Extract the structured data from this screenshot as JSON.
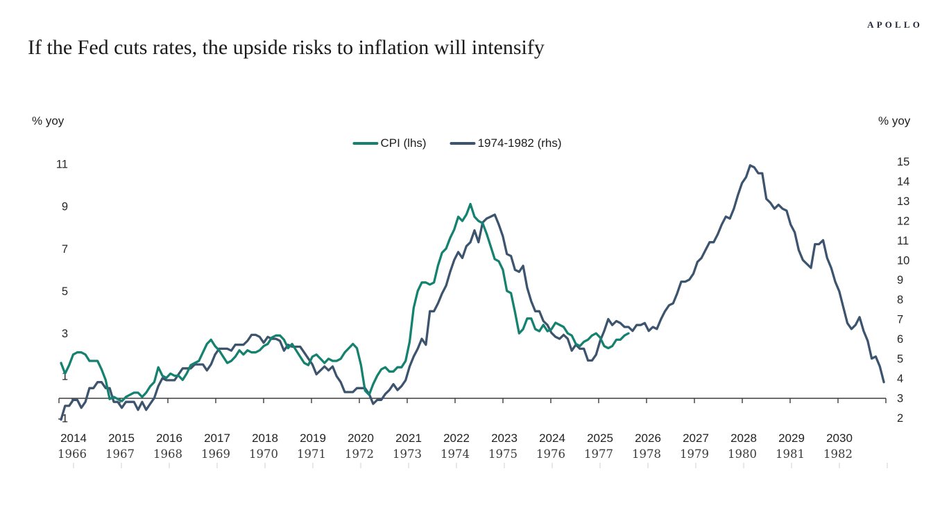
{
  "header": {
    "logo": "APOLLO",
    "title": "If the Fed cuts rates, the upside risks to inflation will intensify"
  },
  "legend": {
    "items": [
      {
        "label": "CPI (lhs)",
        "color": "#15816f"
      },
      {
        "label": "1974-1982 (rhs)",
        "color": "#3d546e"
      }
    ]
  },
  "chart_data": {
    "type": "line",
    "title": "If the Fed cuts rates, the upside risks to inflation will intensify",
    "grid": false,
    "legend_position": "top-center",
    "left_axis": {
      "unit": "% yoy",
      "ticks": [
        11,
        9,
        7,
        5,
        3,
        1,
        -1
      ],
      "range": [
        -1,
        11
      ]
    },
    "right_axis": {
      "unit": "% yoy",
      "ticks": [
        15,
        14,
        13,
        12,
        11,
        10,
        9,
        8,
        7,
        6,
        5,
        4,
        3,
        2
      ],
      "range": [
        2,
        15
      ]
    },
    "x_axis": {
      "top_years": [
        2014,
        2015,
        2016,
        2017,
        2018,
        2019,
        2020,
        2021,
        2022,
        2023,
        2024,
        2025,
        2026,
        2027,
        2028,
        2029,
        2030
      ],
      "bottom_years": [
        1966,
        1967,
        1968,
        1969,
        1970,
        1971,
        1972,
        1973,
        1974,
        1975,
        1976,
        1977,
        1978,
        1979,
        1980,
        1981,
        1982
      ]
    },
    "series": [
      {
        "name": "CPI (lhs)",
        "axis": "left",
        "color": "#15816f",
        "frequency": "monthly",
        "start": "2014-01",
        "values": [
          1.6,
          1.1,
          1.5,
          2.0,
          2.1,
          2.1,
          2.0,
          1.7,
          1.7,
          1.7,
          1.3,
          0.8,
          -0.1,
          0.0,
          -0.1,
          -0.2,
          0.0,
          0.1,
          0.2,
          0.2,
          0.0,
          0.2,
          0.5,
          0.7,
          1.4,
          1.0,
          0.9,
          1.1,
          1.0,
          1.0,
          0.8,
          1.1,
          1.5,
          1.6,
          1.7,
          2.1,
          2.5,
          2.7,
          2.4,
          2.2,
          1.9,
          1.6,
          1.7,
          1.9,
          2.2,
          2.0,
          2.2,
          2.1,
          2.1,
          2.2,
          2.4,
          2.5,
          2.8,
          2.9,
          2.9,
          2.7,
          2.3,
          2.5,
          2.2,
          1.9,
          1.6,
          1.5,
          1.9,
          2.0,
          1.8,
          1.6,
          1.8,
          1.7,
          1.7,
          1.8,
          2.1,
          2.3,
          2.5,
          2.3,
          1.5,
          0.3,
          0.1,
          0.6,
          1.0,
          1.3,
          1.4,
          1.2,
          1.2,
          1.4,
          1.4,
          1.7,
          2.6,
          4.2,
          5.0,
          5.4,
          5.4,
          5.3,
          5.4,
          6.2,
          6.8,
          7.0,
          7.5,
          7.9,
          8.5,
          8.3,
          8.6,
          9.1,
          8.5,
          8.3,
          8.2,
          7.7,
          7.1,
          6.5,
          6.4,
          6.0,
          5.0,
          4.9,
          4.0,
          3.0,
          3.2,
          3.7,
          3.7,
          3.2,
          3.1,
          3.4,
          3.1,
          3.2,
          3.5,
          3.4,
          3.3,
          3.0,
          2.9,
          2.5,
          2.4,
          2.6,
          2.7,
          2.9,
          3.0,
          2.8,
          2.4,
          2.3,
          2.4,
          2.7,
          2.7,
          2.9,
          3.0
        ]
      },
      {
        "name": "1974-1982 (rhs)",
        "axis": "right",
        "color": "#3d546e",
        "frequency": "monthly",
        "start": "1966-01",
        "values": [
          1.9,
          2.6,
          2.6,
          2.9,
          2.9,
          2.5,
          2.8,
          3.5,
          3.5,
          3.8,
          3.8,
          3.5,
          3.5,
          2.8,
          2.8,
          2.5,
          2.8,
          2.8,
          2.8,
          2.4,
          2.8,
          2.4,
          2.7,
          3.0,
          3.6,
          4.0,
          3.9,
          3.9,
          3.9,
          4.2,
          4.5,
          4.5,
          4.5,
          4.7,
          4.7,
          4.7,
          4.4,
          4.7,
          5.2,
          5.5,
          5.5,
          5.5,
          5.4,
          5.7,
          5.7,
          5.7,
          5.9,
          6.2,
          6.2,
          6.1,
          5.8,
          6.1,
          6.0,
          6.0,
          5.9,
          5.4,
          5.7,
          5.6,
          5.6,
          5.6,
          5.3,
          5.0,
          4.7,
          4.2,
          4.4,
          4.6,
          4.4,
          4.6,
          4.1,
          3.8,
          3.3,
          3.3,
          3.3,
          3.5,
          3.5,
          3.5,
          3.2,
          2.7,
          2.9,
          2.9,
          3.2,
          3.4,
          3.7,
          3.4,
          3.6,
          3.9,
          4.6,
          5.1,
          5.5,
          6.0,
          5.7,
          7.4,
          7.4,
          7.8,
          8.3,
          8.7,
          9.4,
          10.0,
          10.4,
          10.1,
          10.7,
          10.9,
          11.5,
          10.9,
          11.9,
          12.1,
          12.2,
          12.3,
          11.8,
          11.2,
          10.3,
          10.2,
          9.5,
          9.4,
          9.7,
          8.6,
          7.9,
          7.4,
          7.4,
          6.9,
          6.7,
          6.3,
          6.1,
          6.0,
          6.2,
          6.0,
          5.4,
          5.7,
          5.5,
          5.5,
          4.9,
          4.9,
          5.2,
          5.9,
          6.4,
          7.0,
          6.7,
          6.9,
          6.8,
          6.6,
          6.6,
          6.4,
          6.7,
          6.7,
          6.8,
          6.4,
          6.6,
          6.5,
          7.0,
          7.4,
          7.7,
          7.8,
          8.3,
          8.9,
          8.9,
          9.0,
          9.3,
          9.9,
          10.1,
          10.5,
          10.9,
          10.9,
          11.3,
          11.8,
          12.2,
          12.1,
          12.6,
          13.3,
          13.9,
          14.2,
          14.8,
          14.7,
          14.4,
          14.4,
          13.1,
          12.9,
          12.6,
          12.8,
          12.6,
          12.5,
          11.8,
          11.4,
          10.5,
          10.0,
          9.8,
          9.6,
          10.8,
          10.8,
          11.0,
          10.1,
          9.6,
          8.9,
          8.4,
          7.6,
          6.8,
          6.5,
          6.7,
          7.1,
          6.4,
          5.9,
          5.0,
          5.1,
          4.6,
          3.8
        ]
      }
    ]
  },
  "colors": {
    "cpi_line": "#15816f",
    "comparison_line": "#3d546e",
    "axis_line": "#3c3c3c",
    "tick_label": "#262626",
    "bottom_year_label": "#3b3b3b",
    "faint_tick": "#d9d9d9",
    "background": "#ffffff"
  }
}
